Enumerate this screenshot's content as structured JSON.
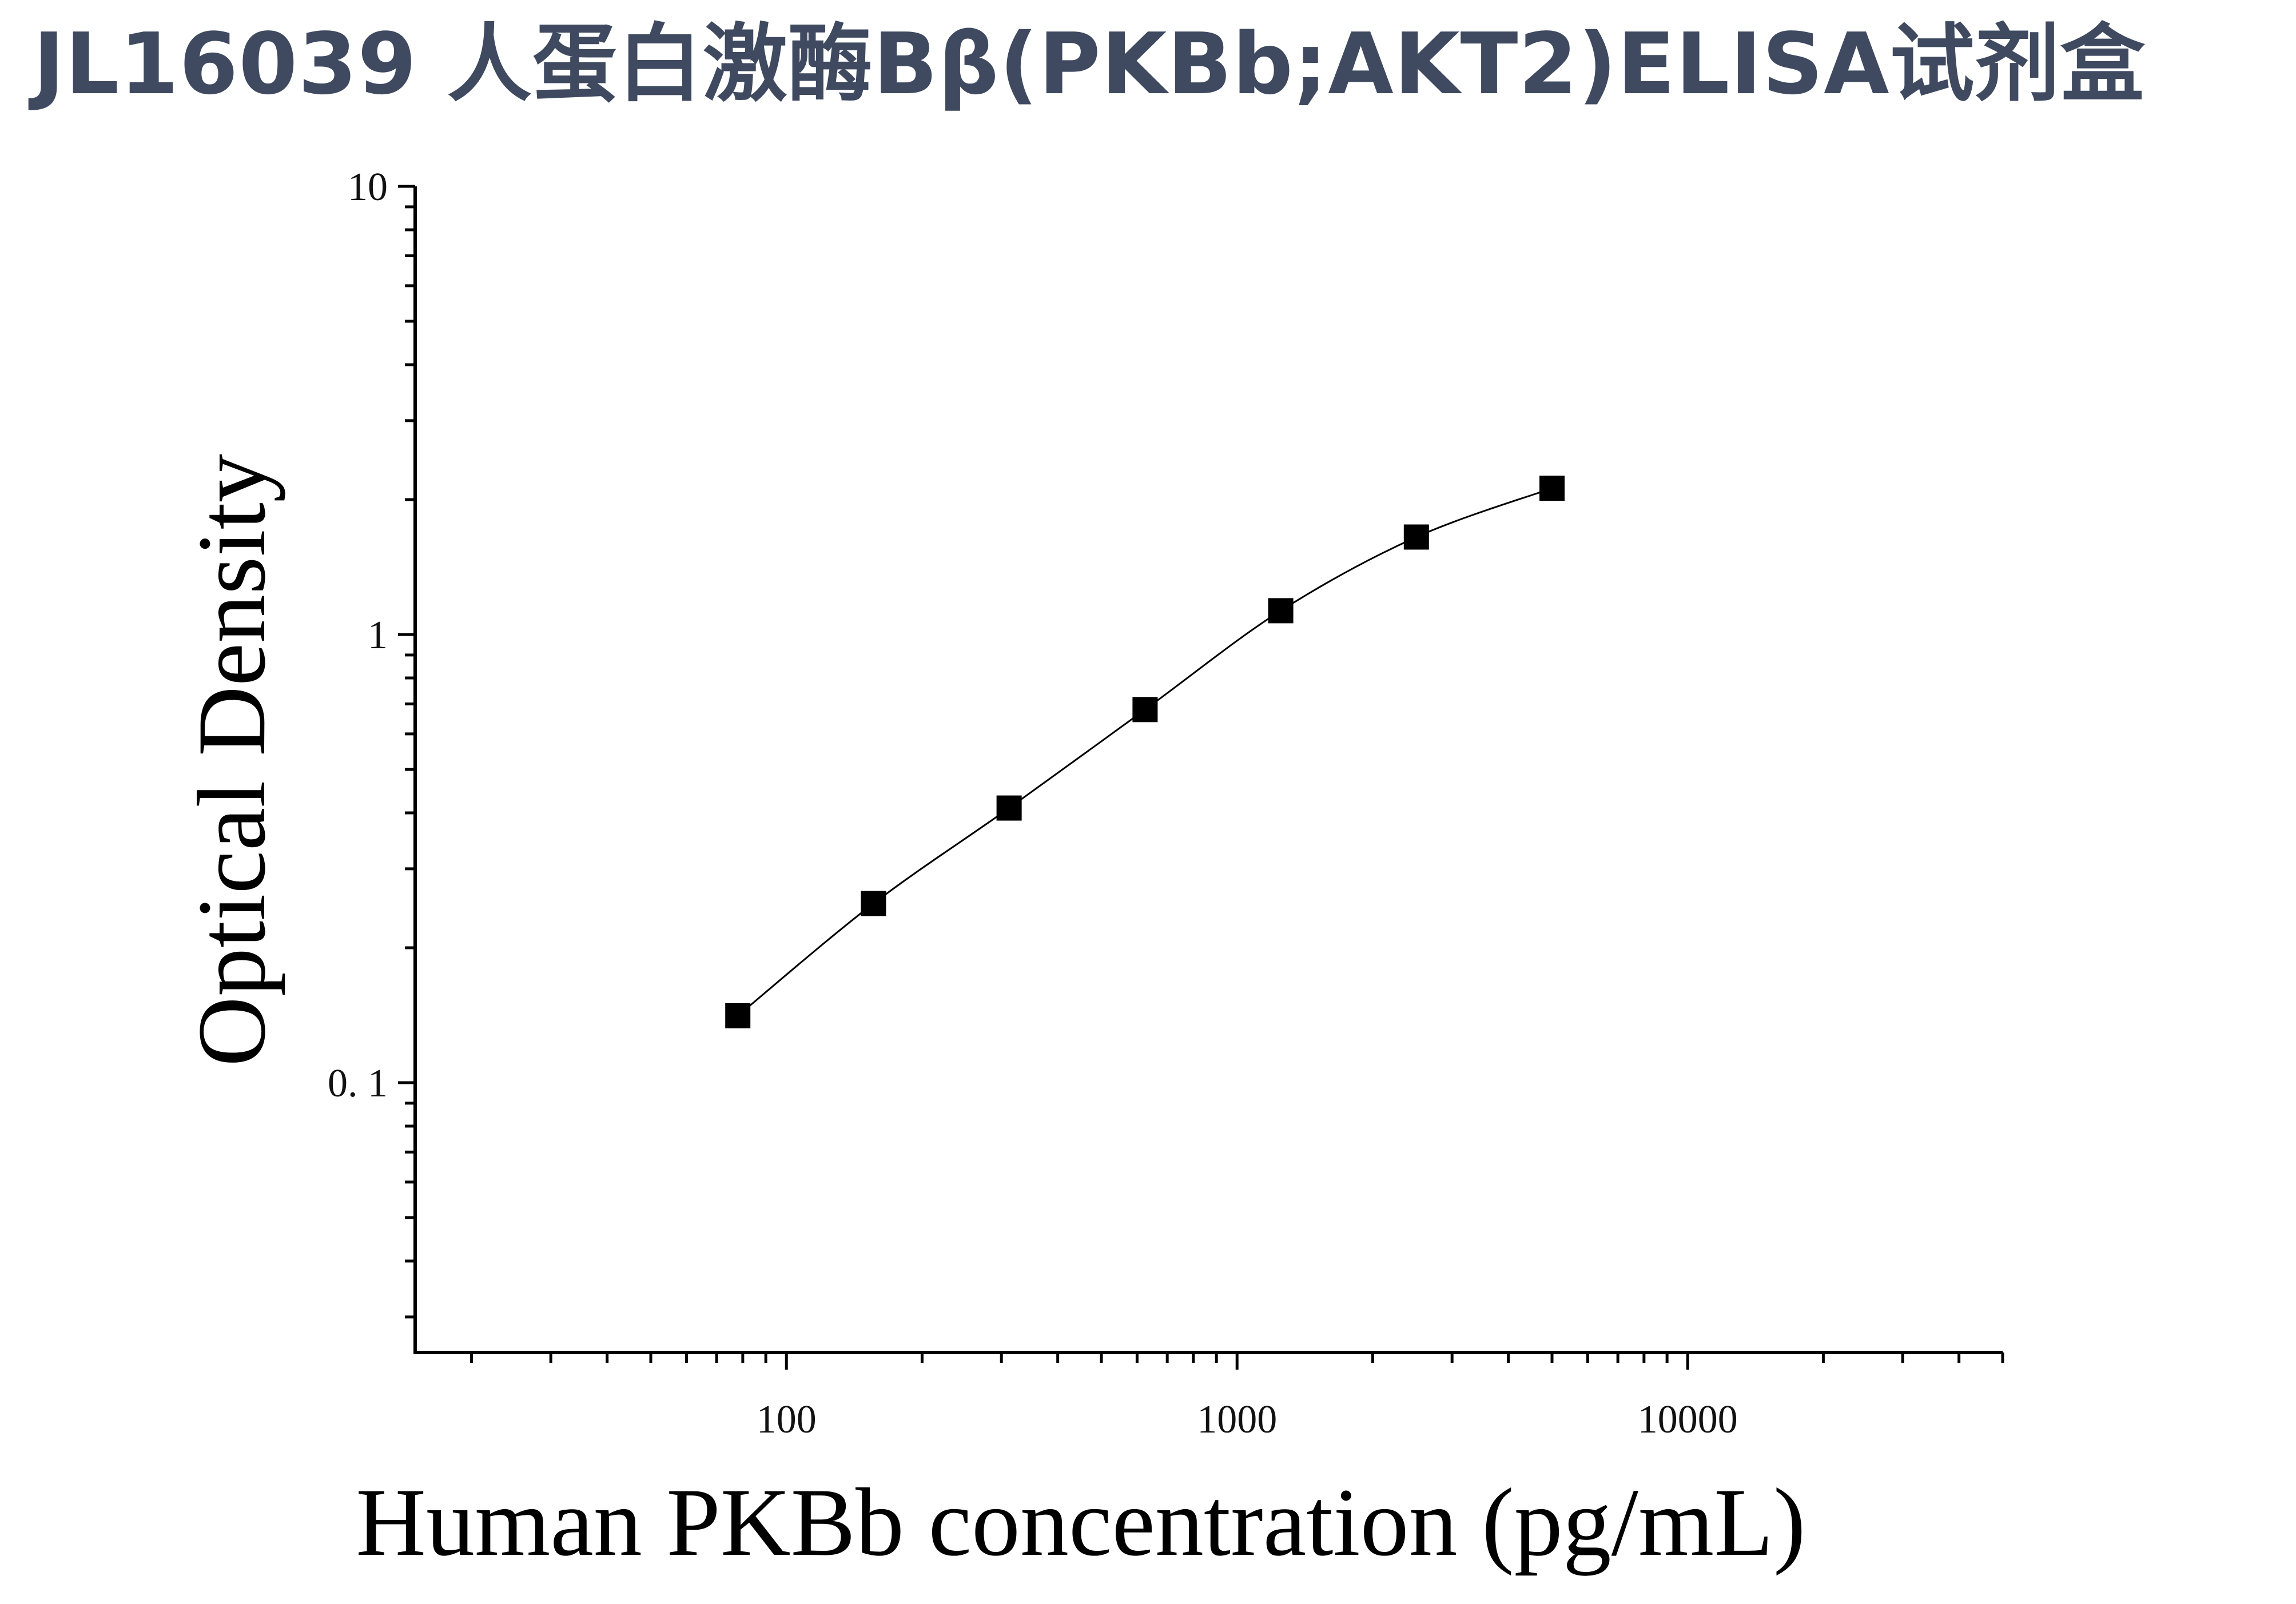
{
  "page": {
    "title": "JL16039 人蛋白激酶Bβ(PKBb;AKT2)ELISA试剂盒"
  },
  "colors": {
    "title": "#3f4a60",
    "axis": "#000000",
    "marker": "#000000",
    "curve": "#000000"
  },
  "chart_data": {
    "type": "scatter",
    "title": "",
    "xlabel": "Human PKBb concentration (pg/mL)",
    "ylabel": "Optical Density",
    "xscale": "log",
    "yscale": "log",
    "xlim": [
      15,
      50000
    ],
    "ylim": [
      0.025,
      10
    ],
    "xticks": [
      {
        "value": 100,
        "label": "100"
      },
      {
        "value": 1000,
        "label": "1000"
      },
      {
        "value": 10000,
        "label": "10000"
      }
    ],
    "yticks": [
      {
        "value": 10,
        "label": "10"
      },
      {
        "value": 1,
        "label": "1"
      },
      {
        "value": 0.1,
        "label": "0. 1"
      }
    ],
    "grid": false,
    "legend": "none",
    "series": [
      {
        "marker": "square",
        "fit_curve": true,
        "x": [
          78,
          156,
          312,
          625,
          1250,
          2500,
          5000
        ],
        "y": [
          0.141,
          0.251,
          0.41,
          0.68,
          1.13,
          1.65,
          2.12
        ]
      }
    ]
  }
}
